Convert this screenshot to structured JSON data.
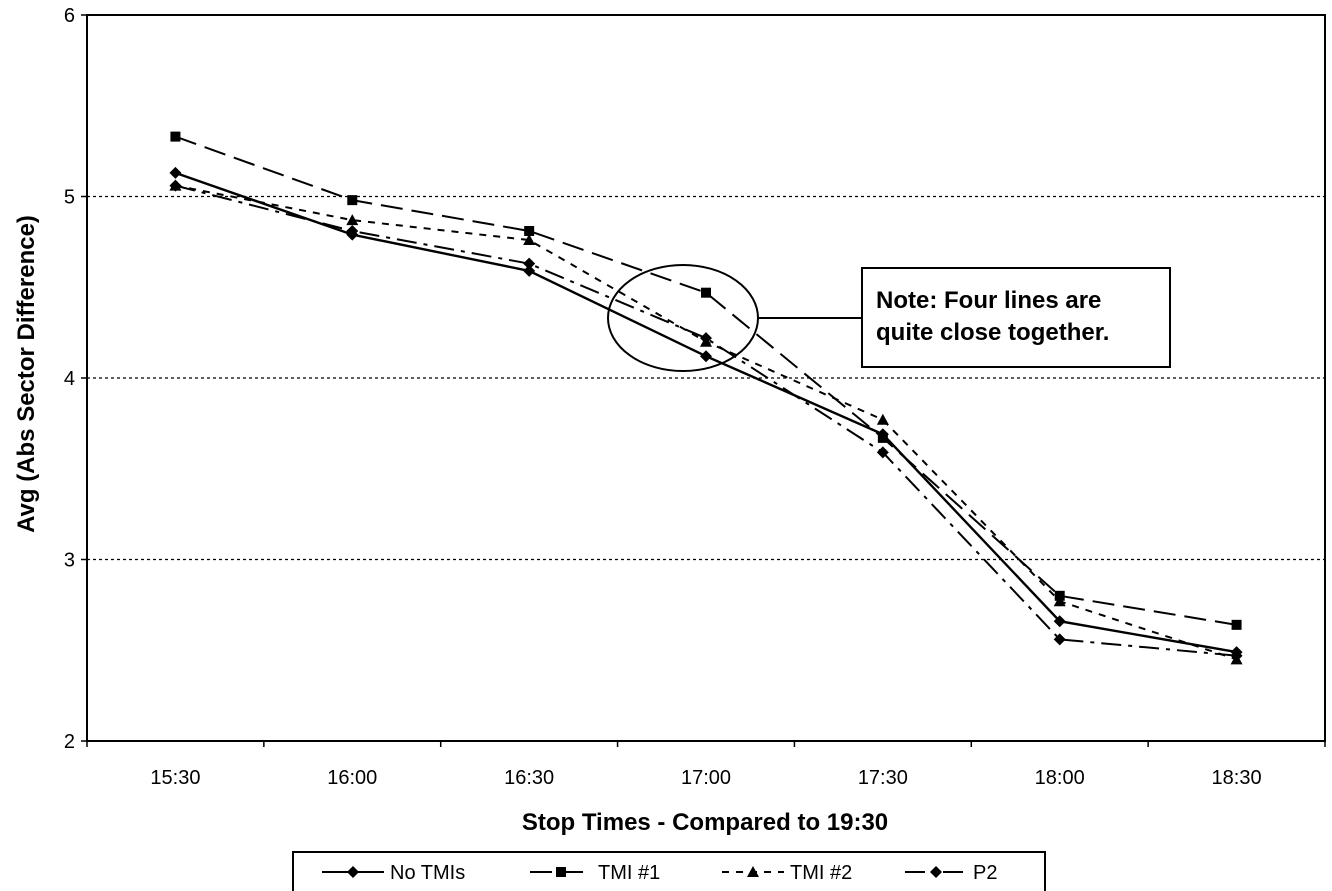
{
  "chart_data": {
    "type": "line",
    "title": "",
    "xlabel": "Stop Times - Compared to 19:30",
    "ylabel": "Avg (Abs Sector Difference)",
    "categories": [
      "15:30",
      "16:00",
      "16:30",
      "17:00",
      "17:30",
      "18:00",
      "18:30"
    ],
    "ylim": [
      2,
      6
    ],
    "yticks": [
      "2",
      "3",
      "4",
      "5",
      "6"
    ],
    "grid": "horizontal dotted at 3, 4, 5",
    "legend_position": "bottom",
    "series": [
      {
        "name": "No TMIs",
        "marker": "diamond",
        "dash": "solid",
        "values": [
          5.13,
          4.79,
          4.59,
          4.12,
          3.69,
          2.66,
          2.49
        ]
      },
      {
        "name": "TMI #1",
        "marker": "square",
        "dash": "long-dash",
        "values": [
          5.33,
          4.98,
          4.81,
          4.47,
          3.67,
          2.8,
          2.64
        ]
      },
      {
        "name": "TMI #2",
        "marker": "triangle",
        "dash": "short-dash",
        "values": [
          5.06,
          4.87,
          4.76,
          4.2,
          3.77,
          2.77,
          2.45
        ]
      },
      {
        "name": "P2",
        "marker": "diamond",
        "dash": "dash-dot",
        "values": [
          5.06,
          4.81,
          4.63,
          4.22,
          3.59,
          2.56,
          2.47
        ]
      }
    ],
    "annotation": {
      "lines": [
        "Note: Four lines are",
        "quite close together."
      ],
      "target_category": "17:00"
    }
  }
}
